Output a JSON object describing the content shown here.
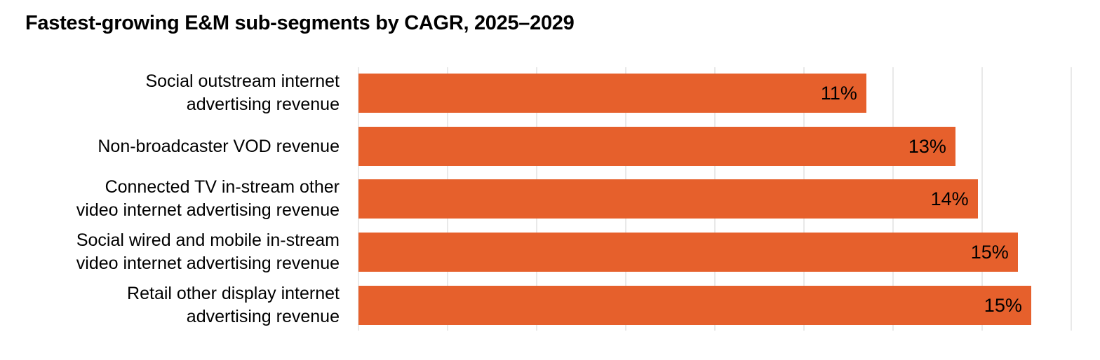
{
  "chart_data": {
    "type": "bar",
    "orientation": "horizontal",
    "title": "Fastest-growing E&M sub-segments by CAGR, 2025–2029",
    "categories": [
      "Social outstream internet advertising revenue",
      "Non-broadcaster VOD revenue",
      "Connected TV in-stream other video internet advertising revenue",
      "Social wired and mobile in-stream video internet advertising revenue",
      "Retail other display internet advertising revenue"
    ],
    "category_line_breaks": [
      [
        "Social outstream internet",
        "advertising revenue"
      ],
      [
        "Non-broadcaster VOD revenue"
      ],
      [
        "Connected TV in-stream other",
        "video internet advertising revenue"
      ],
      [
        "Social wired and mobile in-stream",
        "video internet advertising revenue"
      ],
      [
        "Retail other display internet",
        "advertising revenue"
      ]
    ],
    "values": [
      11,
      13,
      14,
      15,
      15
    ],
    "data_labels": [
      "11%",
      "13%",
      "14%",
      "15%",
      "15%"
    ],
    "bar_lengths_pct_estimated": [
      11.4,
      13.4,
      13.9,
      14.8,
      15.1
    ],
    "xlabel": "",
    "ylabel": "",
    "xlim": [
      0,
      16
    ],
    "gridline_step_pct": 2,
    "grid": true,
    "legend": "none",
    "axis_tick_labels": "none",
    "bar_color": "#E6602C",
    "gridline_color": "#E9E9E9",
    "text_color": "#000000",
    "background_color": "#FFFFFF"
  }
}
